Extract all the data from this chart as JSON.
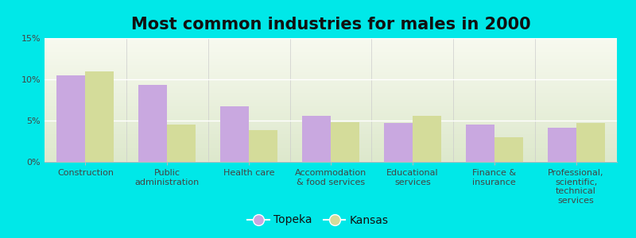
{
  "title": "Most common industries for males in 2000",
  "categories": [
    "Construction",
    "Public\nadministration",
    "Health care",
    "Accommodation\n& food services",
    "Educational\nservices",
    "Finance &\ninsurance",
    "Professional,\nscientific,\ntechnical\nservices"
  ],
  "topeka": [
    10.5,
    9.3,
    6.7,
    5.6,
    4.7,
    4.5,
    4.1
  ],
  "kansas": [
    11.0,
    4.5,
    3.8,
    4.8,
    5.6,
    3.0,
    4.7
  ],
  "topeka_color": "#c9a8e0",
  "kansas_color": "#d4dc9a",
  "background_color": "#00e8e8",
  "grad_top": "#dde8cc",
  "grad_bottom": "#f8faf0",
  "bar_width": 0.35,
  "ylim": [
    0,
    15
  ],
  "yticks": [
    0,
    5,
    10,
    15
  ],
  "ytick_labels": [
    "0%",
    "5%",
    "10%",
    "15%"
  ],
  "legend_topeka": "Topeka",
  "legend_kansas": "Kansas",
  "title_fontsize": 15,
  "tick_fontsize": 8,
  "legend_fontsize": 10
}
